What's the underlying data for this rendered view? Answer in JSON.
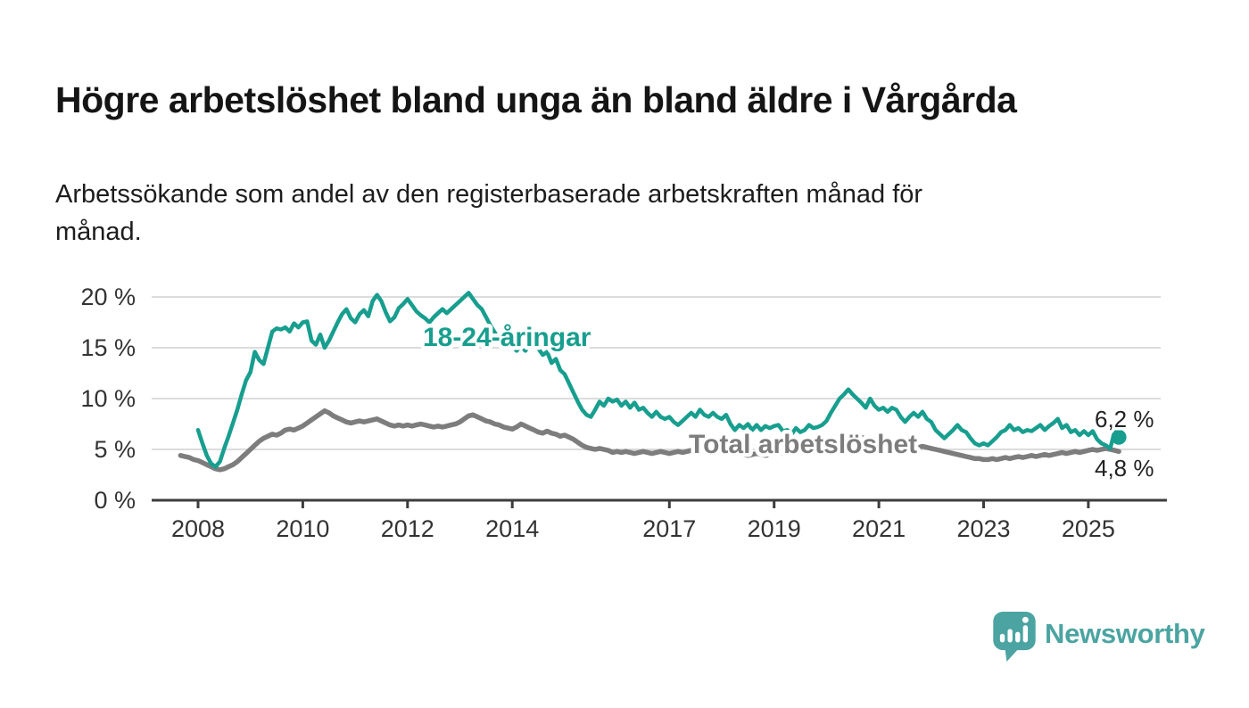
{
  "header": {
    "title": "Högre arbetslöshet bland unga än bland äldre i Vårgårda",
    "subtitle": "Arbetssökande som andel av den registerbaserade arbetskraften månad för\nmånad."
  },
  "branding": {
    "logo_text": "Newsworthy",
    "logo_color": "#4ba4a1",
    "logo_icon": "bar-chart-speech-bubble-icon"
  },
  "colors": {
    "background": "#ffffff",
    "title_text": "#151515",
    "subtitle_text": "#1d1d1d",
    "grid": "#dcdcdc",
    "axis": "#3d3d3d",
    "tick_text": "#333333",
    "value_label_text": "#222222",
    "youth_series": "#179e8e",
    "total_series": "#7d7d7d"
  },
  "chart_data": {
    "type": "line",
    "title": "Högre arbetslöshet bland unga än bland äldre i Vårgårda",
    "subtitle": "Arbetssökande som andel av den registerbaserade arbetskraften månad för månad.",
    "x_unit": "month",
    "grid": "horizontal",
    "legend_position": "inline-labels",
    "y_axis": {
      "tick_values": [
        0,
        5,
        10,
        15,
        20
      ],
      "tick_labels": [
        "0 %",
        "5 %",
        "10 %",
        "15 %",
        "20 %"
      ],
      "range": [
        0,
        21.5
      ]
    },
    "x_axis": {
      "tick_years": [
        2008,
        2010,
        2012,
        2014,
        2017,
        2019,
        2021,
        2023,
        2025
      ],
      "tick_labels": [
        "2008",
        "2010",
        "2012",
        "2014",
        "2017",
        "2019",
        "2021",
        "2023",
        "2025"
      ],
      "range_years": [
        2007.1,
        2026.5
      ]
    },
    "series": [
      {
        "name": "18-24-åringar",
        "color": "#179e8e",
        "start": "2008-01",
        "start_month_offset": 0,
        "end": "2025-08",
        "end_label": "6,2 %",
        "end_value": 6.2,
        "end_dot": true,
        "values": [
          6.9,
          5.6,
          4.4,
          3.6,
          3.3,
          3.8,
          5.1,
          6.3,
          7.6,
          8.9,
          10.4,
          11.8,
          12.6,
          14.6,
          13.8,
          13.4,
          15.0,
          16.6,
          16.9,
          16.8,
          17.0,
          16.6,
          17.4,
          17.0,
          17.5,
          17.6,
          15.7,
          15.3,
          16.3,
          15.0,
          15.7,
          16.6,
          17.5,
          18.3,
          18.8,
          17.9,
          17.5,
          18.3,
          18.7,
          18.1,
          19.6,
          20.2,
          19.6,
          18.5,
          17.6,
          18.0,
          18.9,
          19.3,
          19.8,
          19.2,
          18.6,
          18.2,
          17.9,
          17.5,
          18.0,
          18.4,
          18.8,
          18.4,
          18.8,
          19.2,
          19.6,
          20.0,
          20.4,
          19.8,
          19.2,
          18.8,
          18.0,
          17.2,
          16.5,
          15.8,
          16.2,
          15.6,
          15.2,
          14.7,
          15.2,
          14.7,
          15.3,
          15.6,
          14.9,
          14.3,
          14.6,
          13.5,
          13.9,
          12.8,
          12.4,
          11.5,
          10.6,
          9.7,
          8.9,
          8.4,
          8.2,
          8.9,
          9.7,
          9.3,
          10.0,
          9.7,
          9.9,
          9.3,
          9.7,
          9.1,
          9.6,
          8.9,
          9.1,
          8.6,
          8.2,
          8.7,
          8.2,
          8.0,
          8.2,
          7.7,
          7.4,
          7.8,
          8.2,
          8.6,
          8.2,
          8.9,
          8.4,
          8.2,
          8.6,
          8.2,
          8.0,
          8.4,
          7.5,
          6.9,
          7.4,
          7.1,
          7.5,
          6.9,
          7.4,
          6.9,
          7.3,
          7.1,
          7.3,
          7.4,
          6.8,
          6.9,
          6.5,
          7.1,
          6.7,
          6.9,
          7.4,
          7.1,
          7.2,
          7.4,
          7.8,
          8.6,
          9.3,
          10.0,
          10.4,
          10.9,
          10.4,
          10.0,
          9.6,
          9.1,
          10.0,
          9.3,
          8.9,
          9.1,
          8.7,
          9.1,
          8.9,
          8.2,
          7.7,
          8.2,
          8.6,
          8.2,
          8.7,
          8.0,
          7.7,
          6.9,
          6.5,
          6.1,
          6.5,
          6.9,
          7.4,
          6.9,
          6.7,
          6.1,
          5.6,
          5.4,
          5.6,
          5.4,
          5.8,
          6.2,
          6.7,
          6.9,
          7.4,
          6.9,
          7.1,
          6.7,
          6.9,
          6.8,
          7.1,
          7.4,
          6.9,
          7.3,
          7.6,
          8.0,
          7.1,
          7.4,
          6.7,
          6.9,
          6.4,
          6.8,
          6.4,
          6.8,
          6.0,
          5.6,
          5.4,
          5.1,
          6.7,
          6.2
        ]
      },
      {
        "name": "Total arbetslöshet",
        "color": "#7d7d7d",
        "start": "2007-09",
        "start_month_offset": -4,
        "end": "2025-08",
        "end_label": "4,8 %",
        "end_value": 4.8,
        "end_dot": false,
        "values": [
          4.4,
          4.3,
          4.2,
          4.0,
          3.9,
          3.7,
          3.5,
          3.3,
          3.1,
          3.0,
          3.1,
          3.3,
          3.5,
          3.8,
          4.2,
          4.6,
          5.0,
          5.4,
          5.8,
          6.1,
          6.3,
          6.5,
          6.4,
          6.6,
          6.9,
          7.0,
          6.9,
          7.1,
          7.3,
          7.6,
          7.9,
          8.2,
          8.5,
          8.8,
          8.6,
          8.3,
          8.1,
          7.9,
          7.7,
          7.6,
          7.7,
          7.8,
          7.7,
          7.8,
          7.9,
          8.0,
          7.8,
          7.6,
          7.4,
          7.3,
          7.4,
          7.3,
          7.4,
          7.3,
          7.4,
          7.5,
          7.4,
          7.3,
          7.2,
          7.3,
          7.2,
          7.3,
          7.4,
          7.5,
          7.7,
          8.0,
          8.3,
          8.4,
          8.2,
          8.0,
          7.8,
          7.7,
          7.5,
          7.4,
          7.2,
          7.1,
          7.0,
          7.2,
          7.5,
          7.3,
          7.1,
          6.9,
          6.7,
          6.6,
          6.8,
          6.6,
          6.5,
          6.3,
          6.4,
          6.2,
          6.0,
          5.7,
          5.4,
          5.2,
          5.1,
          5.0,
          5.1,
          5.0,
          4.9,
          4.7,
          4.8,
          4.7,
          4.8,
          4.7,
          4.6,
          4.7,
          4.8,
          4.7,
          4.6,
          4.7,
          4.8,
          4.7,
          4.6,
          4.7,
          4.8,
          4.7,
          4.8,
          4.9,
          4.8,
          4.9,
          4.8,
          4.7,
          4.8,
          4.7,
          4.8,
          4.9,
          4.8,
          4.7,
          4.6,
          4.5,
          4.4,
          4.5,
          4.6,
          4.5,
          4.4,
          4.5,
          4.6,
          4.7,
          4.6,
          4.5,
          4.6,
          4.7,
          4.8,
          4.7,
          4.6,
          4.7,
          4.8,
          4.9,
          5.0,
          5.2,
          5.6,
          5.9,
          6.1,
          6.3,
          6.4,
          6.3,
          6.2,
          6.0,
          5.9,
          5.8,
          5.9,
          5.8,
          5.7,
          5.6,
          5.5,
          5.4,
          5.3,
          5.4,
          5.3,
          5.2,
          5.3,
          5.2,
          5.1,
          5.0,
          4.9,
          4.8,
          4.7,
          4.6,
          4.5,
          4.4,
          4.3,
          4.2,
          4.1,
          4.1,
          4.0,
          4.0,
          4.1,
          4.0,
          4.1,
          4.2,
          4.1,
          4.2,
          4.3,
          4.2,
          4.3,
          4.4,
          4.3,
          4.4,
          4.5,
          4.4,
          4.5,
          4.6,
          4.7,
          4.6,
          4.7,
          4.8,
          4.7,
          4.8,
          4.9,
          5.0,
          4.9,
          5.0,
          5.1,
          5.0,
          4.9,
          4.8
        ]
      }
    ]
  }
}
